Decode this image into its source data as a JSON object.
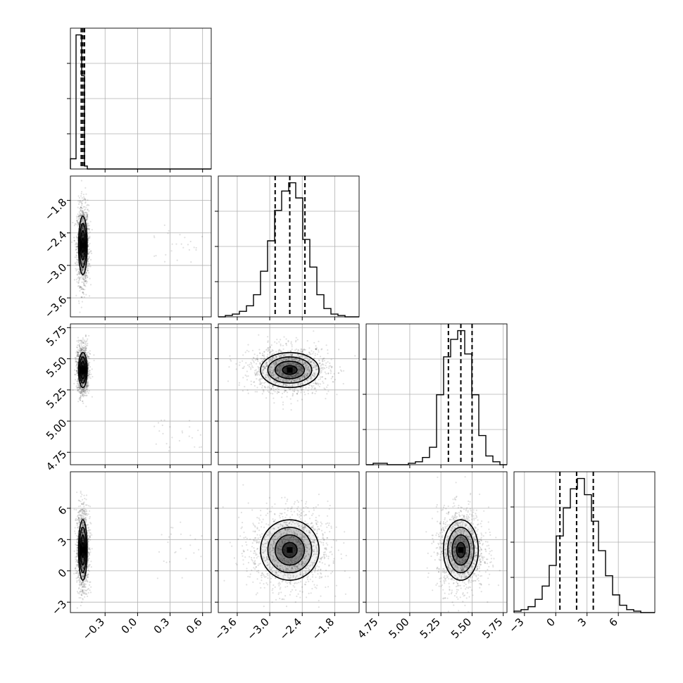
{
  "chart_data": {
    "type": "corner",
    "parameters": [
      {
        "index": 0,
        "range": [
          -0.62,
          0.68
        ],
        "ticks": [
          -0.3,
          0.0,
          0.3,
          0.6
        ],
        "tick_labels": [
          "−0.3",
          "0.0",
          "0.3",
          "0.6"
        ],
        "median": -0.505,
        "q16": -0.52,
        "q84": -0.49
      },
      {
        "index": 1,
        "range": [
          -3.95,
          -1.35
        ],
        "ticks": [
          -3.6,
          -3.0,
          -2.4,
          -1.8
        ],
        "tick_labels": [
          "−3.6",
          "−3.0",
          "−2.4",
          "−1.8"
        ],
        "median": -2.63,
        "q16": -2.9,
        "q84": -2.35
      },
      {
        "index": 2,
        "range": [
          4.65,
          5.78
        ],
        "ticks": [
          4.75,
          5.0,
          5.25,
          5.5,
          5.75
        ],
        "tick_labels": [
          "4.75",
          "5.00",
          "5.25",
          "5.50",
          "5.75"
        ],
        "median": 5.41,
        "q16": 5.31,
        "q84": 5.5
      },
      {
        "index": 3,
        "range": [
          -4.0,
          9.5
        ],
        "ticks": [
          -3,
          0,
          3,
          6
        ],
        "tick_labels": [
          "−3",
          "0",
          "3",
          "6"
        ],
        "median": 2.0,
        "q16": 0.4,
        "q84": 3.6
      }
    ],
    "histograms": [
      {
        "param": 0,
        "edges": [
          -0.62,
          -0.594,
          -0.568,
          -0.542,
          -0.516,
          -0.49,
          -0.464,
          -0.438,
          -0.412,
          -0.386,
          -0.36,
          -0.334,
          -0.308,
          -0.282,
          -0.256,
          -0.23,
          -0.204,
          -0.178,
          -0.152,
          -0.126,
          -0.1,
          -0.074,
          -0.048,
          -0.022,
          0.004,
          0.03,
          0.056,
          0.082,
          0.108,
          0.134,
          0.16,
          0.186,
          0.212,
          0.238,
          0.264,
          0.29,
          0.316,
          0.342,
          0.368,
          0.394,
          0.42,
          0.446,
          0.472,
          0.498,
          0.524,
          0.55,
          0.576,
          0.602,
          0.628,
          0.654,
          0.68
        ],
        "counts": [
          0.07,
          0.07,
          0.92,
          0.92,
          0.64,
          0.02,
          0.0,
          0.0,
          0.0,
          0.0,
          0.0,
          0.0,
          0.0,
          0.0,
          0.0,
          0.0,
          0.0,
          0.0,
          0.0,
          0.0,
          0.0,
          0.0,
          0.0,
          0.0,
          0.0,
          0.0,
          0.0,
          0.0,
          0.0,
          0.0,
          0.0,
          0.0,
          0.0,
          0.0,
          0.0,
          0.0,
          0.0,
          0.0,
          0.0,
          0.0,
          0.0,
          0.0,
          0.0,
          0.0,
          0.0,
          0.0,
          0.0,
          0.0,
          0.0,
          0.0
        ]
      },
      {
        "param": 1,
        "edges": [
          -3.95,
          -3.82,
          -3.69,
          -3.56,
          -3.43,
          -3.3,
          -3.17,
          -3.04,
          -2.91,
          -2.78,
          -2.65,
          -2.52,
          -2.39,
          -2.26,
          -2.13,
          -2.0,
          -1.87,
          -1.74,
          -1.61,
          -1.48,
          -1.35
        ],
        "counts": [
          0.0,
          0.01,
          0.02,
          0.04,
          0.08,
          0.16,
          0.33,
          0.55,
          0.77,
          0.91,
          0.97,
          0.86,
          0.56,
          0.36,
          0.16,
          0.06,
          0.02,
          0.01,
          0.0,
          0.0
        ]
      },
      {
        "param": 2,
        "edges": [
          4.65,
          4.7065,
          4.763,
          4.8195,
          4.876,
          4.9325,
          4.989,
          5.0455,
          5.102,
          5.1585,
          5.215,
          5.2715,
          5.328,
          5.3845,
          5.441,
          5.4975,
          5.554,
          5.6105,
          5.667,
          5.7235,
          5.78
        ],
        "counts": [
          0.0,
          0.01,
          0.01,
          0.0,
          0.0,
          0.0,
          0.01,
          0.02,
          0.05,
          0.12,
          0.48,
          0.74,
          0.86,
          0.92,
          0.76,
          0.48,
          0.2,
          0.06,
          0.02,
          0.0
        ]
      },
      {
        "param": 3,
        "edges": [
          -4.0,
          -3.325,
          -2.65,
          -1.975,
          -1.3,
          -0.625,
          0.05,
          0.725,
          1.4,
          2.075,
          2.75,
          3.425,
          4.1,
          4.775,
          5.45,
          6.125,
          6.8,
          7.475,
          8.15,
          8.825,
          9.5
        ],
        "counts": [
          0.01,
          0.02,
          0.04,
          0.09,
          0.18,
          0.32,
          0.52,
          0.71,
          0.84,
          0.91,
          0.8,
          0.62,
          0.42,
          0.25,
          0.12,
          0.05,
          0.02,
          0.01,
          0.0,
          0.0
        ]
      }
    ],
    "pairs": [
      {
        "x": 0,
        "y": 1,
        "mean": [
          -0.505,
          -2.63
        ],
        "sd": [
          0.02,
          0.27
        ]
      },
      {
        "x": 0,
        "y": 2,
        "mean": [
          -0.505,
          5.41
        ],
        "sd": [
          0.02,
          0.07
        ]
      },
      {
        "x": 0,
        "y": 3,
        "mean": [
          -0.505,
          2.0
        ],
        "sd": [
          0.02,
          1.45
        ]
      },
      {
        "x": 1,
        "y": 2,
        "mean": [
          -2.63,
          5.41
        ],
        "sd": [
          0.27,
          0.07
        ]
      },
      {
        "x": 1,
        "y": 3,
        "mean": [
          -2.63,
          2.0
        ],
        "sd": [
          0.27,
          1.45
        ]
      },
      {
        "x": 2,
        "y": 3,
        "mean": [
          5.41,
          2.0
        ],
        "sd": [
          0.07,
          1.45
        ]
      }
    ],
    "contour_levels_sigma": [
      0.5,
      1.0,
      1.5,
      2.0
    ],
    "grid": true,
    "xlabel": "",
    "ylabel": "",
    "title": ""
  }
}
